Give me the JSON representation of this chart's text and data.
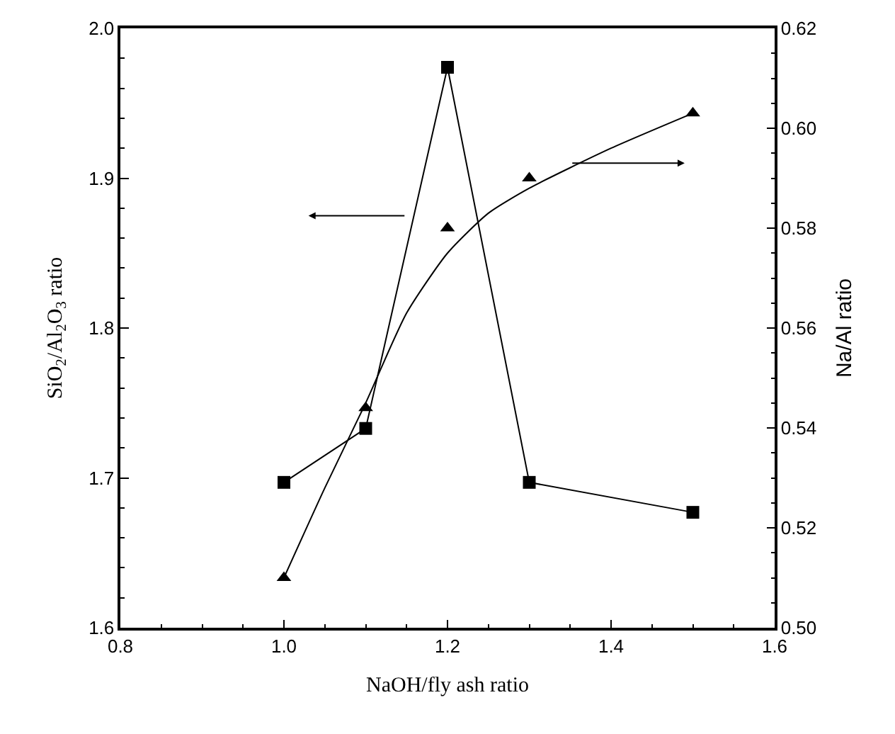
{
  "chart_data": {
    "type": "line",
    "xlabel": "NaOH/fly ash ratio",
    "ylabel": "SiO$_{2}$/Al$_{2}$O$_{3}$ ratio",
    "y2label": "Na/Al ratio",
    "x": [
      1.0,
      1.1,
      1.2,
      1.3,
      1.5
    ],
    "series": [
      {
        "color": "#000000",
        "marker": "square",
        "values": [
          1.697,
          1.733,
          1.974,
          1.697,
          1.677
        ]
      },
      {
        "type": "scatter",
        "color": "#000000",
        "marker": "triangle",
        "axis": "y2",
        "values": [
          0.51,
          0.544,
          0.58,
          0.59,
          0.603
        ]
      },
      {
        "color": "#000000",
        "marker": "none",
        "axis": "y2",
        "x": [
          1.0,
          1.05,
          1.1,
          1.15,
          1.2,
          1.25,
          1.3,
          1.4,
          1.5
        ],
        "values": [
          0.51,
          0.528,
          0.545,
          0.563,
          0.575,
          0.583,
          0.588,
          0.596,
          0.603
        ]
      }
    ],
    "xlim": [
      0.8,
      1.6
    ],
    "xticks": [
      0.8,
      {
        "value": 1.0,
        "label": "1.0"
      },
      1.2,
      1.4,
      1.6
    ],
    "ylim": [
      1.6,
      2.0
    ],
    "yticks": [
      1.6,
      1.7,
      1.8,
      1.9,
      {
        "value": 2.0,
        "label": "2.0"
      }
    ],
    "y2lim": [
      0.5,
      0.62
    ],
    "y2ticks": [
      {
        "value": 0.5,
        "label": "0.50"
      },
      0.52,
      0.54,
      0.56,
      0.58,
      {
        "value": 0.6,
        "label": "0.60"
      },
      0.62
    ]
  }
}
